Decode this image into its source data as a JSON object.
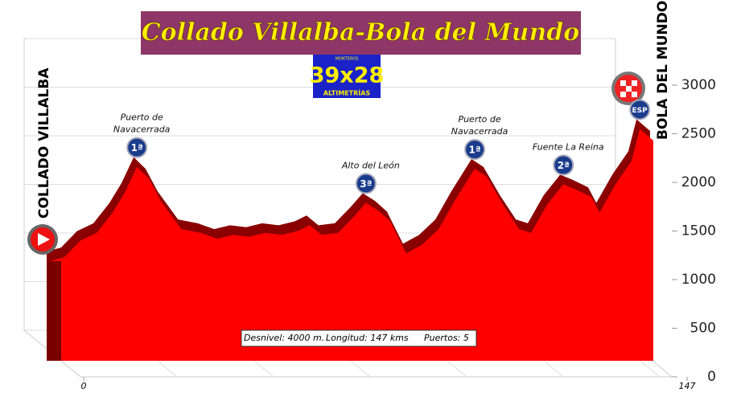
{
  "chart_data": {
    "type": "area",
    "title": "Collado Villalba-Bola del Mundo",
    "logo": {
      "top": "MONTEROS",
      "main": "39x28",
      "bottom": "ALTIMETRÍAS"
    },
    "start_label": "COLLADO VILLALBA",
    "finish_label": "BOLA DEL MUNDO",
    "info": [
      "Desnivel: 4000 m.",
      "Longitud:  147 kms",
      "Puertos:  5"
    ],
    "x": [
      0,
      3.5,
      7.4,
      11.4,
      15.3,
      18.2,
      21.2,
      24.1,
      27,
      32,
      36.8,
      40.8,
      44.7,
      48.6,
      52.5,
      56.5,
      60.4,
      63.3,
      66.2,
      70.2,
      74.1,
      77,
      80,
      82.9,
      86.8,
      90.7,
      94.7,
      98.6,
      103.5,
      106.4,
      110.4,
      114.3,
      117.2,
      121.1,
      125.1,
      128,
      131.9,
      133.9,
      137.8,
      141.7,
      143.7,
      147
    ],
    "values": [
      1190,
      1230,
      1400,
      1480,
      1690,
      1890,
      2160,
      2040,
      1810,
      1520,
      1480,
      1420,
      1460,
      1440,
      1480,
      1460,
      1500,
      1560,
      1460,
      1480,
      1650,
      1790,
      1710,
      1600,
      1270,
      1360,
      1520,
      1810,
      2140,
      2060,
      1770,
      1520,
      1480,
      1770,
      1980,
      1930,
      1850,
      1690,
      1980,
      2220,
      2550,
      2430
    ],
    "color": "#ff0000",
    "xlim": [
      0,
      147
    ],
    "xticks": [
      0,
      147
    ],
    "ylim": [
      0,
      3000
    ],
    "yticks": [
      0,
      500,
      1000,
      1500,
      2000,
      2500,
      3000
    ],
    "grid": true,
    "annotations": [
      {
        "lines": [
          "Puerto de",
          "Navacerrada"
        ],
        "badge": "1ª",
        "x": 21.2
      },
      {
        "lines": [
          "Alto del León"
        ],
        "badge": "3ª",
        "x": 77
      },
      {
        "lines": [
          "Puerto de",
          "Navacerrada"
        ],
        "badge": "1ª",
        "x": 103.5
      },
      {
        "lines": [
          "Fuente La Reina"
        ],
        "badge": "2ª",
        "x": 125.1
      },
      {
        "lines": [],
        "badge": "ESP",
        "x": 143.7
      }
    ]
  }
}
